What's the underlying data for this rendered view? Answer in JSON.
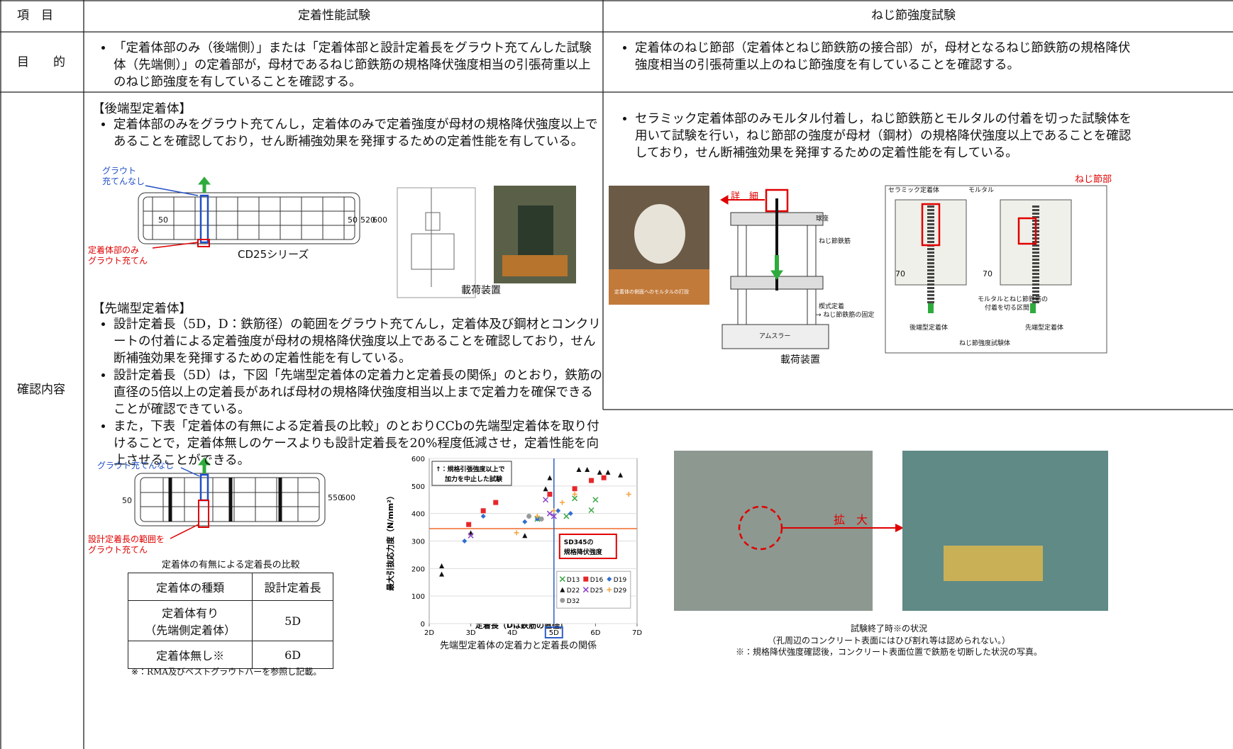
{
  "header": {
    "item": "項　目",
    "anchorage": "定着性能試験",
    "thread": "ねじ節強度試験"
  },
  "purpose": {
    "label": "目　　的",
    "anchorage": [
      "「定着体部のみ（後端側）」または「定着体部と設計定着長をグラウト充てんした試験体（先端側）」の定着部が，母材であるねじ節鉄筋の規格降伏強度相当の引張荷重以上のねじ節強度を有していることを確認する。"
    ],
    "thread": [
      "定着体のねじ節部（定着体とねじ節鉄筋の接合部）が，母材となるねじ節鉄筋の規格降伏強度相当の引張荷重以上のねじ節強度を有していることを確認する。"
    ]
  },
  "confirmation": {
    "label": "確認内容",
    "rear": {
      "heading": "【後端型定着体】",
      "bullets": [
        "定着体部のみをグラウト充てんし，定着体のみで定着強度が母材の規格降伏強度以上であることを確認しており，せん断補強効果を発揮するための定着性能を有している。"
      ],
      "no_grout": [
        "グラウト",
        "充てんなし"
      ],
      "grout": [
        "定着体部のみ",
        "グラウト充てん"
      ],
      "series": "CD25シリーズ",
      "dims": [
        50,
        50,
        520,
        600
      ],
      "device_caption": "載荷装置"
    },
    "front": {
      "heading": "【先端型定着体】",
      "bullets": [
        "設計定着長（5D，D：鉄筋径）の範囲をグラウト充てんし，定着体及び鋼材とコンクリートの付着による定着強度が母材の規格降伏強度以上であることを確認しており，せん断補強効果を発揮するための定着性能を有している。",
        "設計定着長（5D）は，下図「先端型定着体の定着力と定着長の関係」のとおり，鉄筋の直径の5倍以上の定着長があれば母材の規格降伏強度相当以上まで定着力を確保できることが確認できている。",
        "また，下表「定着体の有無による定着長の比較」のとおりCCbの先端型定着体を取り付けることで，定着体無しのケースよりも設計定着長を20%程度低減させ，定着性能を向上させることができる。"
      ],
      "no_grout": "グラウト充てんなし",
      "grout": [
        "設計定着長の範囲を",
        "グラウト充てん"
      ],
      "dims": [
        50,
        550,
        600
      ]
    },
    "comparison": {
      "title": "定着体の有無による定着長の比較",
      "header": [
        "定着体の種類",
        "設計定着長"
      ],
      "rows": [
        [
          [
            "定着体有り",
            "（先端側定着体）"
          ],
          "5D"
        ],
        [
          [
            "定着体無し※"
          ],
          "6D"
        ]
      ],
      "note": "※：RMA及びベストグラウトバーを参照し記載。"
    },
    "thread": {
      "bullets": [
        "セラミック定着体部のみモルタル付着し，ねじ節鉄筋とモルタルの付着を切った試験体を用いて試験を行い，ねじ節部の強度が母材（鋼材）の規格降伏強度以上であることを確認しており，せん断補強効果を発揮するための定着性能を有している。"
      ],
      "detail": "詳　細",
      "photo_caption": "定着体の側面へのモルタルの打設",
      "device": [
        "球座",
        "ねじ節鉄筋",
        "楔式定着",
        "→ ねじ節鉄筋の固定",
        "アムスラー"
      ],
      "device_caption": "載荷装置",
      "specimen": {
        "ceramic": "セラミック定着体",
        "mortar": "モルタル",
        "thread_part": "ねじ節部",
        "dims": [
          70,
          70
        ],
        "cut": [
          "モルタルとねじ節鉄筋の",
          "付着を切る区間"
        ],
        "rear": "後端型定着体",
        "front": "先端型定着体",
        "title": "ねじ節強度試験体"
      },
      "zoom": "拡　大",
      "result_caption": [
        "試験終了時※の状況",
        "（孔周辺のコンクリート表面にはひび割れ等は認められない。）",
        "※：規格降伏強度確認後，コンクリート表面位置で鉄筋を切断した状況の写真。"
      ]
    }
  },
  "chart_data": {
    "type": "scatter",
    "caption": "先端型定着体の定着力と定着長の関係",
    "x_label": "定着長（Dは鉄筋の直径）",
    "y_label": "最大引抜応力度（N/mm²）",
    "xlim": [
      2,
      7
    ],
    "ylim": [
      0,
      600
    ],
    "xticks": [
      {
        "value": 2,
        "label": "2D"
      },
      {
        "value": 3,
        "label": "3D"
      },
      {
        "value": 4,
        "label": "4D"
      },
      {
        "value": 5,
        "label": "5D"
      },
      {
        "value": 6,
        "label": "6D"
      },
      {
        "value": 7,
        "label": "7D"
      }
    ],
    "yticks": [
      0,
      100,
      200,
      300,
      400,
      500,
      600
    ],
    "grid": true,
    "vline": {
      "value": 5,
      "color": "#2f5fc4"
    },
    "hline": {
      "value": 345,
      "color": "#f06a2a"
    },
    "hline_label": [
      "SD345の",
      "規格降伏強度"
    ],
    "annotation": [
      "↑：規格引張強度以上で",
      "加力を中止した試験"
    ],
    "series": [
      {
        "name": "D13",
        "color": "#3aa845",
        "marker": "x",
        "x": [
          4.6,
          5.3,
          5.5,
          5.9,
          6.0
        ],
        "values": [
          380,
          390,
          455,
          412,
          450
        ]
      },
      {
        "name": "D16",
        "color": "#e8262a",
        "marker": "square",
        "x": [
          2.95,
          3.3,
          3.6,
          4.9,
          5.5,
          5.9,
          6.2
        ],
        "values": [
          360,
          410,
          440,
          470,
          490,
          520,
          530
        ]
      },
      {
        "name": "D19",
        "color": "#2f6fd0",
        "marker": "diamond",
        "x": [
          2.85,
          3.3,
          4.3,
          4.6,
          5.1,
          5.4
        ],
        "values": [
          300,
          390,
          370,
          380,
          410,
          400
        ]
      },
      {
        "name": "D22",
        "color": "#111111",
        "marker": "triangle",
        "x": [
          2.3,
          2.3,
          3.0,
          4.3,
          4.8,
          4.9,
          5.6,
          5.8,
          6.1,
          6.3,
          6.6
        ],
        "values": [
          210,
          180,
          330,
          320,
          490,
          530,
          560,
          560,
          550,
          550,
          540
        ]
      },
      {
        "name": "D25",
        "color": "#8a3fc8",
        "marker": "x",
        "x": [
          3.0,
          4.8,
          4.9,
          5.0
        ],
        "values": [
          320,
          450,
          400,
          390
        ]
      },
      {
        "name": "D29",
        "color": "#f5a23a",
        "marker": "plus",
        "x": [
          4.1,
          4.6,
          5.0,
          5.2,
          5.5,
          6.8
        ],
        "values": [
          330,
          390,
          410,
          440,
          470,
          470
        ]
      },
      {
        "name": "D32",
        "color": "#999999",
        "marker": "circle",
        "x": [
          4.4,
          4.7
        ],
        "values": [
          390,
          380
        ]
      }
    ]
  }
}
